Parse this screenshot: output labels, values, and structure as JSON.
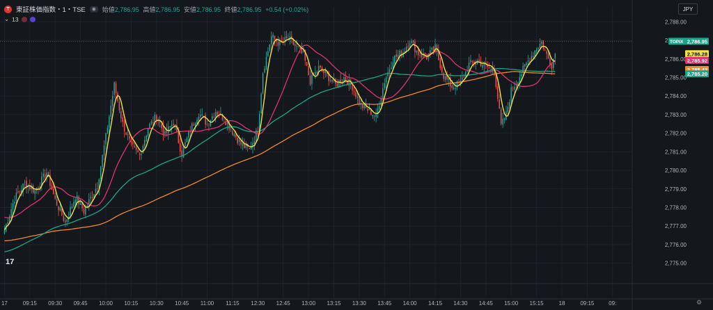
{
  "header": {
    "symbol_logo_letter": "T",
    "symbol_name": "東証株価指数・1・TSE",
    "ohlc": [
      {
        "label": "始値",
        "value": "2,786.95"
      },
      {
        "label": "高値",
        "value": "2,786.95"
      },
      {
        "label": "安値",
        "value": "2,786.95"
      },
      {
        "label": "終値",
        "value": "2,786.95"
      }
    ],
    "change": "+0.54 (+0.02%)",
    "indicator_count": "13",
    "currency": "JPY"
  },
  "colors": {
    "background": "#14171c",
    "grid": "#1e222b",
    "up": "#26a69a",
    "down": "#ef5350",
    "ma_yellow": "#f5e342",
    "ma_pink": "#e0356e",
    "ma_orange": "#f28c28",
    "ma_teal": "#1aa68b"
  },
  "chart_data": {
    "type": "candlestick",
    "y_ticks": [
      "2,788.00",
      "2,787.00",
      "2,786.00",
      "2,785.00",
      "2,784.00",
      "2,783.00",
      "2,782.00",
      "2,781.00",
      "2,780.00",
      "2,779.00",
      "2,778.00",
      "2,777.00",
      "2,776.00",
      "2,775.00"
    ],
    "ylim": [
      2774.5,
      2788.5
    ],
    "x_ticks": [
      {
        "label": "17",
        "x": 0
      },
      {
        "label": "09:15",
        "x": 15
      },
      {
        "label": "09:30",
        "x": 30
      },
      {
        "label": "09:45",
        "x": 45
      },
      {
        "label": "10:00",
        "x": 60
      },
      {
        "label": "10:15",
        "x": 75
      },
      {
        "label": "10:30",
        "x": 90
      },
      {
        "label": "10:45",
        "x": 105
      },
      {
        "label": "11:00",
        "x": 120
      },
      {
        "label": "11:15",
        "x": 135
      },
      {
        "label": "12:30",
        "x": 150
      },
      {
        "label": "12:45",
        "x": 165
      },
      {
        "label": "13:00",
        "x": 180
      },
      {
        "label": "13:15",
        "x": 195
      },
      {
        "label": "13:30",
        "x": 210
      },
      {
        "label": "13:45",
        "x": 225
      },
      {
        "label": "14:00",
        "x": 240
      },
      {
        "label": "14:15",
        "x": 255
      },
      {
        "label": "14:30",
        "x": 270
      },
      {
        "label": "14:45",
        "x": 285
      },
      {
        "label": "15:00",
        "x": 300
      },
      {
        "label": "15:15",
        "x": 315
      },
      {
        "label": "18",
        "x": 330
      },
      {
        "label": "09:15",
        "x": 345
      },
      {
        "label": "09:",
        "x": 360
      }
    ],
    "xlim": [
      -1,
      370
    ],
    "last_bar_x": 326,
    "price_line": 2786.95,
    "price_labels": [
      {
        "text": "TOPIX",
        "value": "2,786.95",
        "color": "#1aa68b",
        "y": 2786.95
      },
      {
        "text": "",
        "value": "2,786.28",
        "color": "#f5e342",
        "y": 2786.28
      },
      {
        "text": "",
        "value": "2,785.92",
        "color": "#e0356e",
        "y": 2785.92
      },
      {
        "text": "",
        "value": "2,785.43",
        "color": "#f28c28",
        "y": 2785.43
      },
      {
        "text": "",
        "value": "2,785.20",
        "color": "#1aa68b",
        "y": 2785.2
      }
    ],
    "anchors": [
      [
        0,
        2776.8
      ],
      [
        6,
        2778.5
      ],
      [
        12,
        2779.3
      ],
      [
        18,
        2778.9
      ],
      [
        25,
        2779.9
      ],
      [
        30,
        2778.4
      ],
      [
        36,
        2777.2
      ],
      [
        42,
        2778.6
      ],
      [
        47,
        2777.8
      ],
      [
        55,
        2779.2
      ],
      [
        60,
        2781.8
      ],
      [
        65,
        2784.6
      ],
      [
        70,
        2782.5
      ],
      [
        75,
        2781.3
      ],
      [
        80,
        2780.8
      ],
      [
        85,
        2782.3
      ],
      [
        90,
        2782.9
      ],
      [
        95,
        2781.9
      ],
      [
        100,
        2782.6
      ],
      [
        105,
        2780.9
      ],
      [
        110,
        2782.2
      ],
      [
        115,
        2783.1
      ],
      [
        120,
        2782.5
      ],
      [
        125,
        2783.2
      ],
      [
        130,
        2782.8
      ],
      [
        135,
        2782.1
      ],
      [
        140,
        2781.4
      ],
      [
        145,
        2781.1
      ],
      [
        150,
        2782.2
      ],
      [
        153,
        2785.3
      ],
      [
        158,
        2787.2
      ],
      [
        163,
        2786.8
      ],
      [
        168,
        2787.1
      ],
      [
        172,
        2786.7
      ],
      [
        177,
        2786.2
      ],
      [
        181,
        2784.8
      ],
      [
        186,
        2785.5
      ],
      [
        191,
        2785.1
      ],
      [
        196,
        2784.6
      ],
      [
        201,
        2785.0
      ],
      [
        206,
        2784.5
      ],
      [
        211,
        2783.5
      ],
      [
        216,
        2783.2
      ],
      [
        220,
        2782.9
      ],
      [
        225,
        2784.8
      ],
      [
        230,
        2786.0
      ],
      [
        236,
        2786.4
      ],
      [
        240,
        2787.0
      ],
      [
        245,
        2786.3
      ],
      [
        250,
        2786.1
      ],
      [
        255,
        2786.6
      ],
      [
        260,
        2785.1
      ],
      [
        265,
        2784.5
      ],
      [
        270,
        2784.7
      ],
      [
        275,
        2785.7
      ],
      [
        280,
        2785.9
      ],
      [
        285,
        2785.6
      ],
      [
        290,
        2785.4
      ],
      [
        294,
        2782.4
      ],
      [
        297,
        2783.0
      ],
      [
        300,
        2784.3
      ],
      [
        305,
        2785.1
      ],
      [
        310,
        2785.9
      ],
      [
        315,
        2786.6
      ],
      [
        318,
        2786.9
      ],
      [
        321,
        2786.2
      ],
      [
        324,
        2785.7
      ],
      [
        326,
        2786.3
      ]
    ],
    "ma_periods": {
      "yellow": 5,
      "pink": 25,
      "teal": 75,
      "orange": 150
    },
    "ma_start": [
      {
        "name": "pink",
        "y": 2777.5
      },
      {
        "name": "teal",
        "y": 2775.6
      },
      {
        "name": "orange",
        "y": 2776.2
      }
    ]
  }
}
